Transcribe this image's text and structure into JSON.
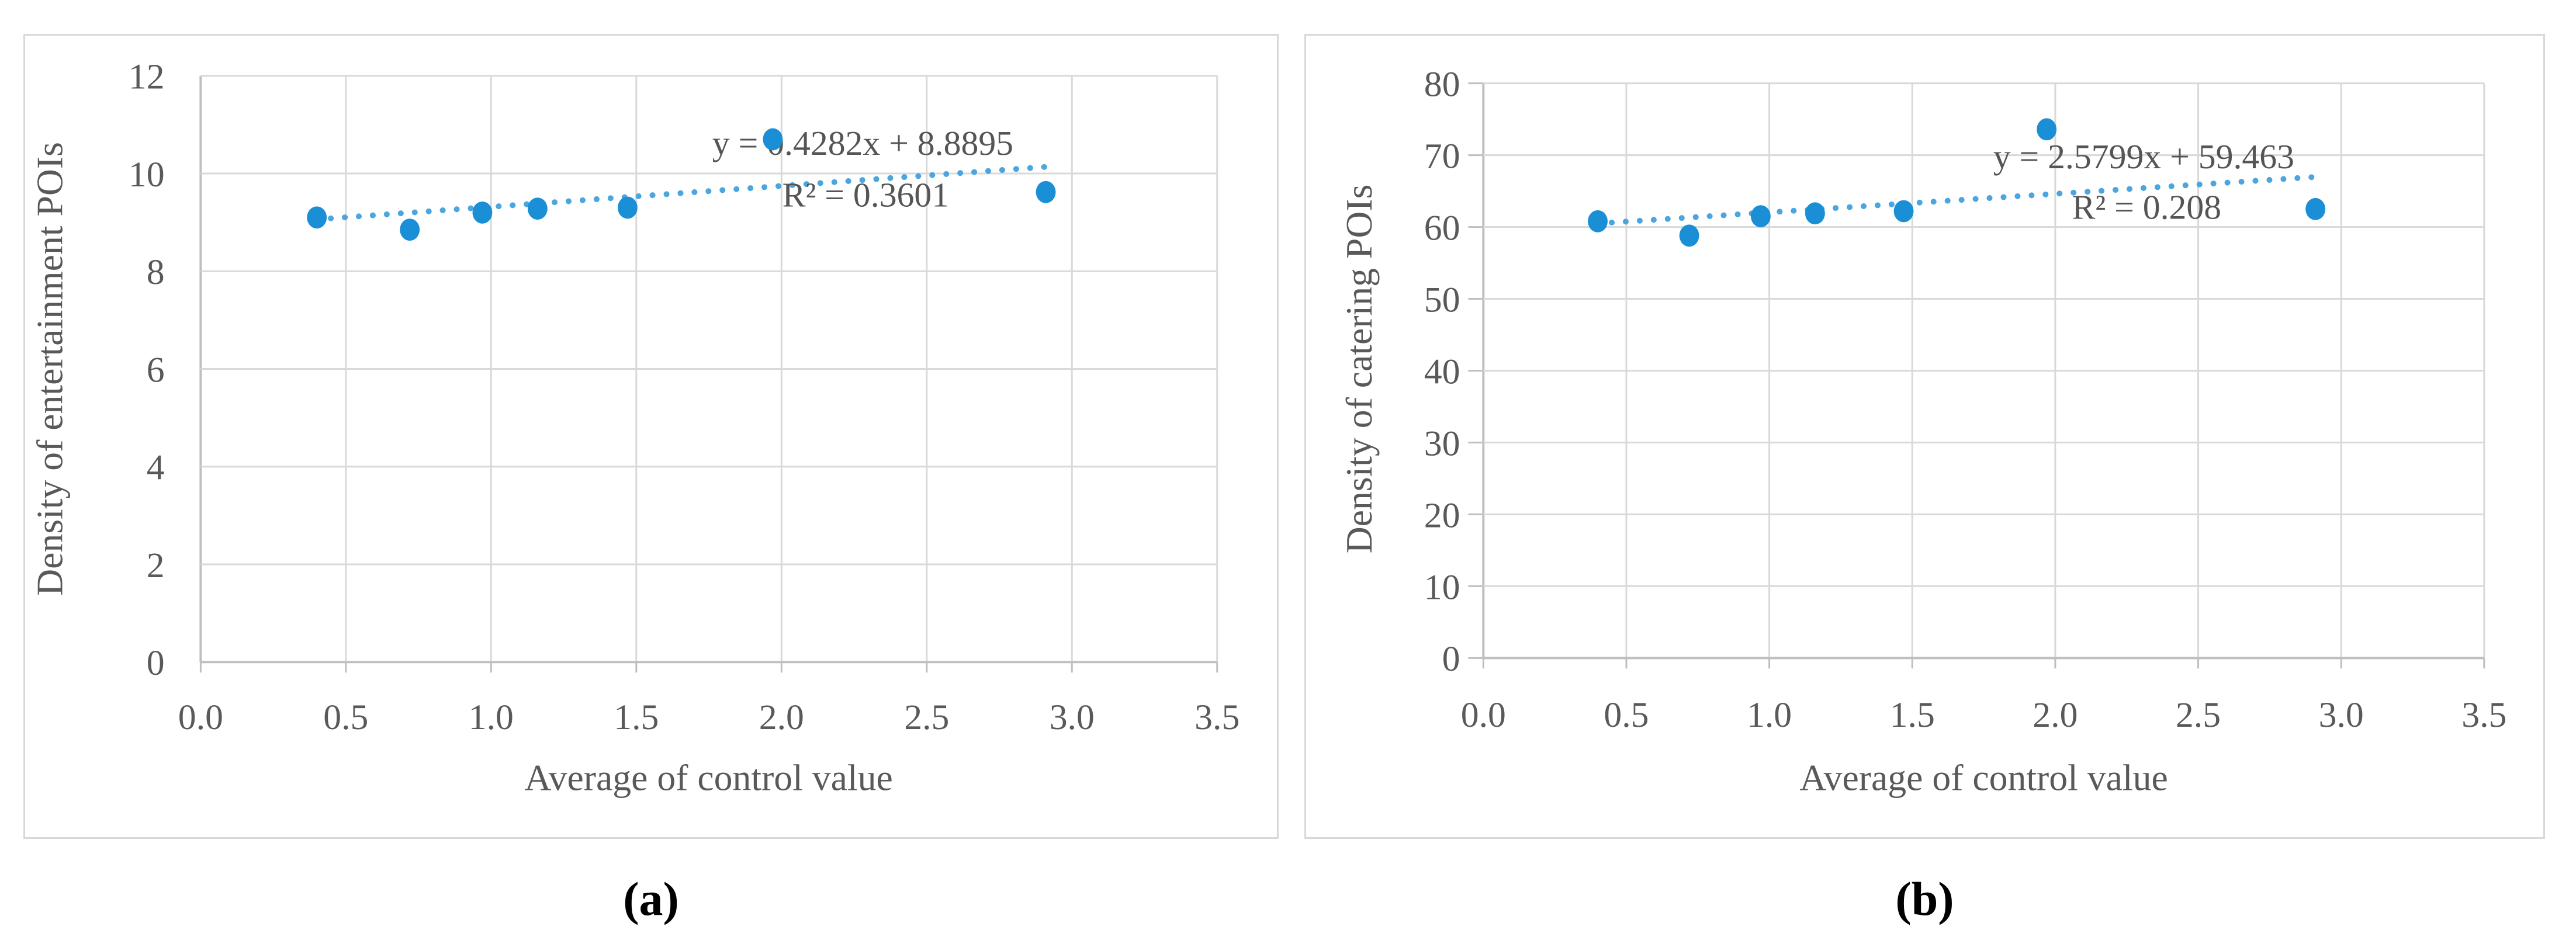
{
  "figure": {
    "caption_a": "(a)",
    "caption_b": "(b)"
  },
  "style": {
    "marker_color": "#1A8FD5",
    "trend_color": "#4BA5DF",
    "grid_color": "#D9D9D9",
    "axis_color": "#BFBFBF",
    "tick_text_color": "#595959",
    "equation_text_color": "#555555",
    "panel_border_color": "#D8D8D8",
    "caption_color": "#000000",
    "background_color": "#FFFFFF"
  },
  "chart_data": [
    {
      "id": "a",
      "type": "scatter",
      "title": "",
      "xlabel": "Average of  control value",
      "ylabel": "Density of  entertainment POIs",
      "xlim": [
        0,
        3.5
      ],
      "ylim": [
        0,
        12
      ],
      "xticks": [
        "0.0",
        "0.5",
        "1.0",
        "1.5",
        "2.0",
        "2.5",
        "3.0",
        "3.5"
      ],
      "yticks": [
        "0",
        "2",
        "4",
        "6",
        "8",
        "10",
        "12"
      ],
      "grid": true,
      "legend": "none",
      "series": [
        {
          "name": "entertainment",
          "x": [
            0.4,
            0.72,
            0.97,
            1.16,
            1.47,
            1.97,
            2.91
          ],
          "y": [
            9.1,
            8.85,
            9.2,
            9.28,
            9.3,
            10.7,
            9.62
          ]
        }
      ],
      "trendline": {
        "slope": 0.4282,
        "intercept": 8.8895,
        "x_start": 0.4,
        "x_end": 2.91,
        "equation": "y = 0.4282x + 8.8895",
        "r_squared": "R² = 0.3601"
      }
    },
    {
      "id": "b",
      "type": "scatter",
      "title": "",
      "xlabel": "Average of  control value",
      "ylabel": "Density of  catering POIs",
      "xlim": [
        0,
        3.5
      ],
      "ylim": [
        0,
        80
      ],
      "xticks": [
        "0.0",
        "0.5",
        "1.0",
        "1.5",
        "2.0",
        "2.5",
        "3.0",
        "3.5"
      ],
      "yticks": [
        "0",
        "10",
        "20",
        "30",
        "40",
        "50",
        "60",
        "70",
        "80"
      ],
      "grid": true,
      "legend": "none",
      "series": [
        {
          "name": "catering",
          "x": [
            0.4,
            0.72,
            0.97,
            1.16,
            1.47,
            1.97,
            2.91
          ],
          "y": [
            60.8,
            58.8,
            61.5,
            61.9,
            62.2,
            73.6,
            62.5
          ]
        }
      ],
      "trendline": {
        "slope": 2.5799,
        "intercept": 59.463,
        "x_start": 0.4,
        "x_end": 2.91,
        "equation": "y = 2.5799x + 59.463",
        "r_squared": "R² = 0.208"
      }
    }
  ]
}
